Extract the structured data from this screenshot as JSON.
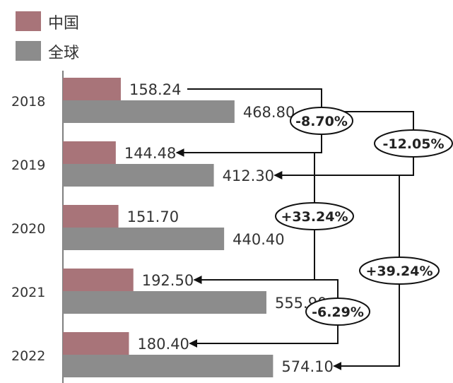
{
  "chart_data": {
    "type": "bar",
    "orientation": "horizontal",
    "categories": [
      "2018",
      "2019",
      "2020",
      "2021",
      "2022"
    ],
    "series": [
      {
        "name": "中国",
        "values": [
          158.24,
          144.48,
          151.7,
          192.5,
          180.4
        ],
        "labels": [
          "158.24",
          "144.48",
          "151.70",
          "192.50",
          "180.40"
        ],
        "color": "#a87479"
      },
      {
        "name": "全球",
        "values": [
          468.8,
          412.3,
          440.4,
          555.9,
          574.1
        ],
        "labels": [
          "468.80",
          "412.30",
          "440.40",
          "555.90",
          "574.10"
        ],
        "color": "#8c8c8c"
      }
    ],
    "legend": {
      "placement": "top-left"
    },
    "xlim": [
      0,
      1000
    ],
    "grid": false,
    "annotations": [
      {
        "text": "-8.70%",
        "series": "中国",
        "from": "2018",
        "to": "2019"
      },
      {
        "text": "-12.05%",
        "series": "全球",
        "from": "2018",
        "to": "2019"
      },
      {
        "text": "+33.24%",
        "series": "中国",
        "from": "2019",
        "to": "2021"
      },
      {
        "text": "+39.24%",
        "series": "全球",
        "from": "2019",
        "to": "2022"
      },
      {
        "text": "-6.29%",
        "series": "中国",
        "from": "2021",
        "to": "2022"
      }
    ]
  }
}
